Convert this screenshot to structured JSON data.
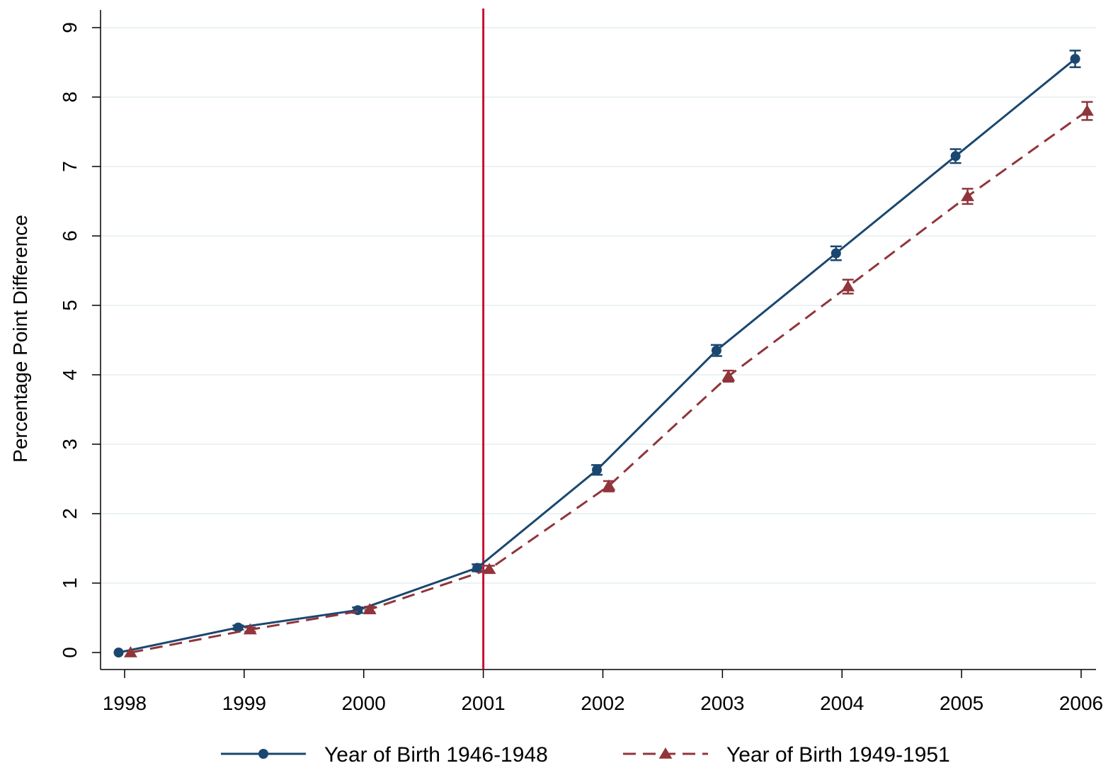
{
  "chart_data": {
    "type": "line",
    "title": "",
    "xlabel": "",
    "ylabel": "Percentage Point Difference",
    "x": [
      1998,
      1999,
      2000,
      2001,
      2002,
      2003,
      2004,
      2005,
      2006
    ],
    "x_tick_labels": [
      "1998",
      "1999",
      "2000",
      "2001",
      "2002",
      "2003",
      "2004",
      "2005",
      "2006"
    ],
    "y_ticks": [
      0,
      1,
      2,
      3,
      4,
      5,
      6,
      7,
      8,
      9
    ],
    "y_tick_labels": [
      "0",
      "1",
      "2",
      "3",
      "4",
      "5",
      "6",
      "7",
      "8",
      "9"
    ],
    "xlim": [
      1998,
      2006
    ],
    "ylim": [
      0,
      9
    ],
    "grid": "horizontal",
    "legend_position": "bottom",
    "reference_line": {
      "axis": "x",
      "value": 2001,
      "color": "#c8102e"
    },
    "series": [
      {
        "name": "Year of Birth 1946-1948",
        "marker": "circle",
        "line_style": "solid",
        "color": "#1a476f",
        "x_offset": -0.05,
        "values": [
          0.0,
          0.36,
          0.61,
          1.22,
          2.63,
          4.35,
          5.75,
          7.15,
          8.55
        ],
        "err_low": [
          0.0,
          0.33,
          0.57,
          1.17,
          2.56,
          4.27,
          5.65,
          7.05,
          8.43
        ],
        "err_high": [
          0.0,
          0.39,
          0.65,
          1.27,
          2.7,
          4.43,
          5.85,
          7.25,
          8.67
        ]
      },
      {
        "name": "Year of Birth 1949-1951",
        "marker": "triangle",
        "line_style": "dashed",
        "color": "#90353b",
        "x_offset": 0.05,
        "values": [
          0.0,
          0.33,
          0.62,
          1.2,
          2.4,
          3.98,
          5.27,
          6.57,
          7.8
        ],
        "err_low": [
          0.0,
          0.3,
          0.58,
          1.15,
          2.32,
          3.9,
          5.17,
          6.46,
          7.67
        ],
        "err_high": [
          0.0,
          0.36,
          0.66,
          1.25,
          2.47,
          4.06,
          5.37,
          6.68,
          7.93
        ]
      }
    ]
  }
}
